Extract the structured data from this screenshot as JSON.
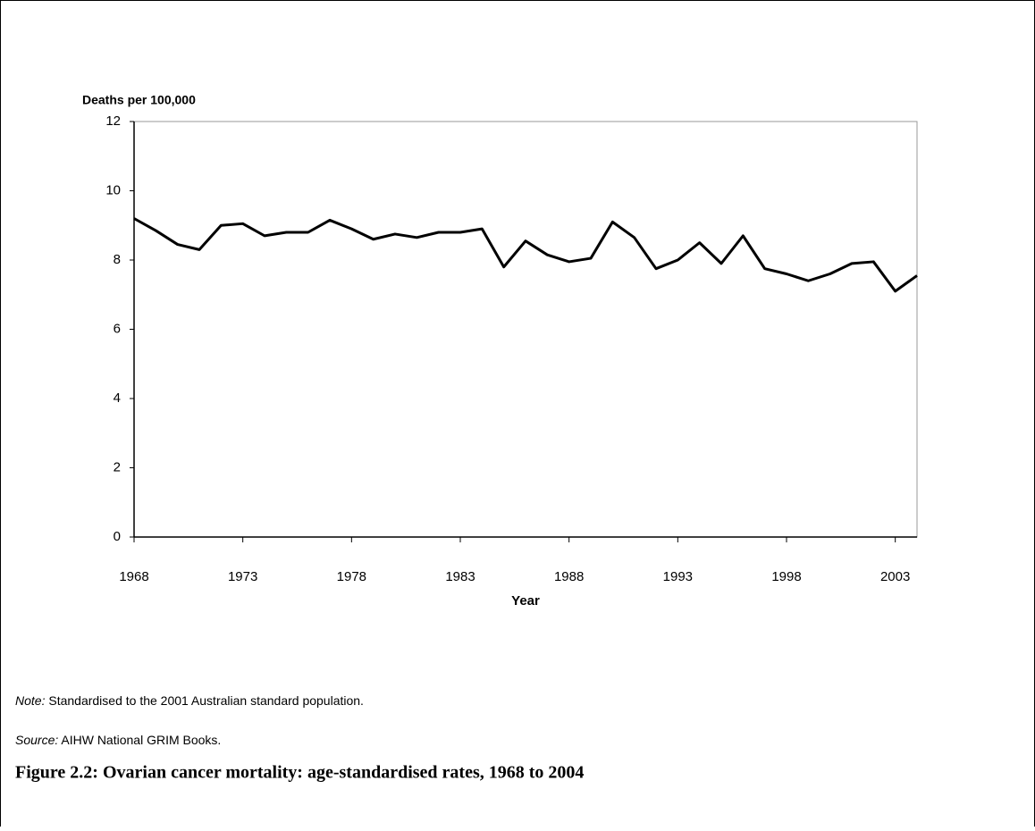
{
  "chart_data": {
    "type": "line",
    "y_label": "Deaths per 100,000",
    "x_label": "Year",
    "x": [
      1968,
      1969,
      1970,
      1971,
      1972,
      1973,
      1974,
      1975,
      1976,
      1977,
      1978,
      1979,
      1980,
      1981,
      1982,
      1983,
      1984,
      1985,
      1986,
      1987,
      1988,
      1989,
      1990,
      1991,
      1992,
      1993,
      1994,
      1995,
      1996,
      1997,
      1998,
      1999,
      2000,
      2001,
      2002,
      2003,
      2004
    ],
    "series": [
      {
        "color": "#000000",
        "values": [
          9.2,
          8.85,
          8.45,
          8.3,
          9.0,
          9.05,
          8.7,
          8.8,
          8.8,
          9.15,
          8.9,
          8.6,
          8.75,
          8.65,
          8.8,
          8.8,
          8.9,
          7.8,
          8.55,
          8.15,
          7.95,
          8.05,
          9.1,
          8.65,
          7.75,
          8.0,
          8.5,
          7.9,
          8.7,
          7.75,
          7.6,
          7.4,
          7.6,
          7.9,
          7.95,
          7.1,
          7.55
        ]
      }
    ],
    "xlim": [
      1968,
      2004
    ],
    "xticks": [
      1968,
      1973,
      1978,
      1983,
      1988,
      1993,
      1998,
      2003
    ],
    "ylim": [
      0,
      12
    ],
    "yticks": [
      0,
      2,
      4,
      6,
      8,
      10,
      12
    ],
    "grid": false
  },
  "note": {
    "label": "Note:",
    "text": "Standardised to the 2001 Australian standard population."
  },
  "source": {
    "label": "Source:",
    "text": "AIHW National GRIM Books."
  },
  "caption": "Figure 2.2: Ovarian cancer mortality: age-standardised rates, 1968 to 2004"
}
